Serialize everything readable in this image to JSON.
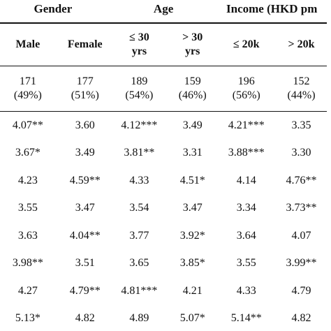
{
  "table": {
    "groups": [
      {
        "label": "Gender",
        "span": 2
      },
      {
        "label": "Age",
        "span": 2
      },
      {
        "label": "Income (HKD pm",
        "span": 2
      }
    ],
    "subheaders": [
      "Male",
      "Female",
      "≤ 30\nyrs",
      "> 30\nyrs",
      "≤ 20k",
      "> 20k"
    ],
    "counts": [
      "171\n(49%)",
      "177\n(51%)",
      "189\n(54%)",
      "159\n(46%)",
      "196\n(56%)",
      "152\n(44%)"
    ],
    "rows": [
      [
        "4.07**",
        "3.60",
        "4.12***",
        "3.49",
        "4.21***",
        "3.35"
      ],
      [
        "3.67*",
        "3.49",
        "3.81**",
        "3.31",
        "3.88***",
        "3.30"
      ],
      [
        "4.23",
        "4.59**",
        "4.33",
        "4.51*",
        "4.14",
        "4.76**"
      ],
      [
        "3.55",
        "3.47",
        "3.54",
        "3.47",
        "3.34",
        "3.73**"
      ],
      [
        "3.63",
        "4.04**",
        "3.77",
        "3.92*",
        "3.64",
        "4.07"
      ],
      [
        "3.98**",
        "3.51",
        "3.65",
        "3.85*",
        "3.55",
        "3.99**"
      ],
      [
        "4.27",
        "4.79**",
        "4.81***",
        "4.21",
        "4.33",
        "4.79"
      ],
      [
        "5.13*",
        "4.82",
        "4.89",
        "5.07*",
        "5.14**",
        "4.82"
      ]
    ]
  }
}
